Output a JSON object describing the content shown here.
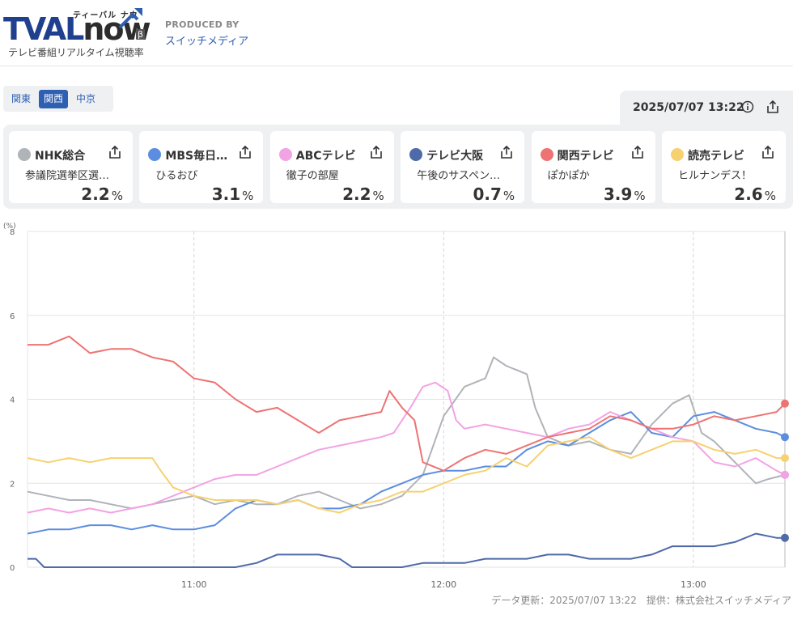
{
  "header": {
    "logo_tval": "TVAL",
    "logo_now": "now",
    "logo_beta": "β",
    "logo_kana": "ティーバル ナウ",
    "subtitle": "テレビ番組リアルタイム視聴率",
    "produced_by": "PRODUCED BY",
    "company": "スイッチメディア"
  },
  "regions": [
    {
      "label": "関東",
      "active": false
    },
    {
      "label": "関西",
      "active": true
    },
    {
      "label": "中京",
      "active": false
    }
  ],
  "timestamp": "2025/07/07 13:22",
  "channels": [
    {
      "name": "NHK総合",
      "program": "参議院選挙区選…",
      "rating": "2.2",
      "unit": "%",
      "color": "#b0b3b8"
    },
    {
      "name": "MBS毎日…",
      "program": "ひるおび",
      "rating": "3.1",
      "unit": "%",
      "color": "#5b8de0"
    },
    {
      "name": "ABCテレビ",
      "program": "徹子の部屋",
      "rating": "2.2",
      "unit": "%",
      "color": "#f2a3e3"
    },
    {
      "name": "テレビ大阪",
      "program": "午後のサスペン…",
      "rating": "0.7",
      "unit": "%",
      "color": "#4e6aa8"
    },
    {
      "name": "関西テレビ",
      "program": "ぽかぽか",
      "rating": "3.9",
      "unit": "%",
      "color": "#ee7373"
    },
    {
      "name": "読売テレビ",
      "program": "ヒルナンデス！",
      "rating": "2.6",
      "unit": "%",
      "color": "#f7d170"
    }
  ],
  "chart_data": {
    "type": "line",
    "ylabel": "(%)",
    "ylim": [
      0,
      8
    ],
    "yticks": [
      0,
      2,
      4,
      6,
      8
    ],
    "x_range": [
      "10:20",
      "13:22"
    ],
    "x_ticks": [
      "11:00",
      "12:00",
      "13:00"
    ],
    "grid": true,
    "series": [
      {
        "name": "NHK総合",
        "color": "#b0b3b8",
        "points": [
          [
            "10:20",
            1.8
          ],
          [
            "10:25",
            1.7
          ],
          [
            "10:30",
            1.6
          ],
          [
            "10:35",
            1.6
          ],
          [
            "10:40",
            1.5
          ],
          [
            "10:45",
            1.4
          ],
          [
            "10:50",
            1.5
          ],
          [
            "10:55",
            1.6
          ],
          [
            "11:00",
            1.7
          ],
          [
            "11:05",
            1.5
          ],
          [
            "11:10",
            1.6
          ],
          [
            "11:15",
            1.5
          ],
          [
            "11:20",
            1.5
          ],
          [
            "11:25",
            1.7
          ],
          [
            "11:30",
            1.8
          ],
          [
            "11:35",
            1.6
          ],
          [
            "11:40",
            1.4
          ],
          [
            "11:45",
            1.5
          ],
          [
            "11:50",
            1.7
          ],
          [
            "11:55",
            2.2
          ],
          [
            "12:00",
            3.6
          ],
          [
            "12:05",
            4.3
          ],
          [
            "12:10",
            4.5
          ],
          [
            "12:12",
            5.0
          ],
          [
            "12:15",
            4.8
          ],
          [
            "12:20",
            4.6
          ],
          [
            "12:22",
            3.8
          ],
          [
            "12:25",
            3.1
          ],
          [
            "12:30",
            2.9
          ],
          [
            "12:35",
            3.0
          ],
          [
            "12:40",
            2.8
          ],
          [
            "12:45",
            2.7
          ],
          [
            "12:50",
            3.4
          ],
          [
            "12:55",
            3.9
          ],
          [
            "12:59",
            4.1
          ],
          [
            "13:02",
            3.2
          ],
          [
            "13:05",
            3.0
          ],
          [
            "13:10",
            2.5
          ],
          [
            "13:15",
            2.0
          ],
          [
            "13:18",
            2.1
          ],
          [
            "13:22",
            2.2
          ]
        ]
      },
      {
        "name": "MBS毎日…",
        "color": "#5b8de0",
        "points": [
          [
            "10:20",
            0.8
          ],
          [
            "10:25",
            0.9
          ],
          [
            "10:30",
            0.9
          ],
          [
            "10:35",
            1.0
          ],
          [
            "10:40",
            1.0
          ],
          [
            "10:45",
            0.9
          ],
          [
            "10:50",
            1.0
          ],
          [
            "10:55",
            0.9
          ],
          [
            "11:00",
            0.9
          ],
          [
            "11:05",
            1.0
          ],
          [
            "11:10",
            1.4
          ],
          [
            "11:15",
            1.6
          ],
          [
            "11:20",
            1.5
          ],
          [
            "11:25",
            1.6
          ],
          [
            "11:30",
            1.4
          ],
          [
            "11:35",
            1.4
          ],
          [
            "11:40",
            1.5
          ],
          [
            "11:45",
            1.8
          ],
          [
            "11:50",
            2.0
          ],
          [
            "11:55",
            2.2
          ],
          [
            "12:00",
            2.3
          ],
          [
            "12:05",
            2.3
          ],
          [
            "12:10",
            2.4
          ],
          [
            "12:15",
            2.4
          ],
          [
            "12:20",
            2.8
          ],
          [
            "12:25",
            3.0
          ],
          [
            "12:30",
            2.9
          ],
          [
            "12:35",
            3.2
          ],
          [
            "12:40",
            3.5
          ],
          [
            "12:45",
            3.7
          ],
          [
            "12:50",
            3.2
          ],
          [
            "12:55",
            3.1
          ],
          [
            "13:00",
            3.6
          ],
          [
            "13:05",
            3.7
          ],
          [
            "13:10",
            3.5
          ],
          [
            "13:15",
            3.3
          ],
          [
            "13:20",
            3.2
          ],
          [
            "13:22",
            3.1
          ]
        ]
      },
      {
        "name": "ABCテレビ",
        "color": "#f2a3e3",
        "points": [
          [
            "10:20",
            1.3
          ],
          [
            "10:25",
            1.4
          ],
          [
            "10:30",
            1.3
          ],
          [
            "10:35",
            1.4
          ],
          [
            "10:40",
            1.3
          ],
          [
            "10:45",
            1.4
          ],
          [
            "10:50",
            1.5
          ],
          [
            "10:55",
            1.7
          ],
          [
            "11:00",
            1.9
          ],
          [
            "11:05",
            2.1
          ],
          [
            "11:10",
            2.2
          ],
          [
            "11:15",
            2.2
          ],
          [
            "11:20",
            2.4
          ],
          [
            "11:25",
            2.6
          ],
          [
            "11:30",
            2.8
          ],
          [
            "11:35",
            2.9
          ],
          [
            "11:40",
            3.0
          ],
          [
            "11:45",
            3.1
          ],
          [
            "11:48",
            3.2
          ],
          [
            "11:52",
            3.8
          ],
          [
            "11:55",
            4.3
          ],
          [
            "11:58",
            4.4
          ],
          [
            "12:01",
            4.2
          ],
          [
            "12:03",
            3.5
          ],
          [
            "12:05",
            3.3
          ],
          [
            "12:10",
            3.4
          ],
          [
            "12:15",
            3.3
          ],
          [
            "12:20",
            3.2
          ],
          [
            "12:25",
            3.1
          ],
          [
            "12:30",
            3.3
          ],
          [
            "12:35",
            3.4
          ],
          [
            "12:40",
            3.7
          ],
          [
            "12:45",
            3.5
          ],
          [
            "12:50",
            3.3
          ],
          [
            "12:55",
            3.1
          ],
          [
            "13:00",
            3.0
          ],
          [
            "13:05",
            2.5
          ],
          [
            "13:10",
            2.4
          ],
          [
            "13:15",
            2.6
          ],
          [
            "13:20",
            2.3
          ],
          [
            "13:22",
            2.2
          ]
        ]
      },
      {
        "name": "テレビ大阪",
        "color": "#4e6aa8",
        "points": [
          [
            "10:20",
            0.2
          ],
          [
            "10:22",
            0.2
          ],
          [
            "10:24",
            0.0
          ],
          [
            "10:35",
            0.0
          ],
          [
            "10:50",
            0.0
          ],
          [
            "11:05",
            0.0
          ],
          [
            "11:10",
            0.0
          ],
          [
            "11:15",
            0.1
          ],
          [
            "11:20",
            0.3
          ],
          [
            "11:25",
            0.3
          ],
          [
            "11:30",
            0.3
          ],
          [
            "11:35",
            0.2
          ],
          [
            "11:38",
            0.0
          ],
          [
            "11:50",
            0.0
          ],
          [
            "11:55",
            0.1
          ],
          [
            "12:00",
            0.1
          ],
          [
            "12:05",
            0.1
          ],
          [
            "12:10",
            0.2
          ],
          [
            "12:15",
            0.2
          ],
          [
            "12:20",
            0.2
          ],
          [
            "12:25",
            0.3
          ],
          [
            "12:30",
            0.3
          ],
          [
            "12:35",
            0.2
          ],
          [
            "12:40",
            0.2
          ],
          [
            "12:45",
            0.2
          ],
          [
            "12:50",
            0.3
          ],
          [
            "12:55",
            0.5
          ],
          [
            "13:00",
            0.5
          ],
          [
            "13:05",
            0.5
          ],
          [
            "13:10",
            0.6
          ],
          [
            "13:15",
            0.8
          ],
          [
            "13:20",
            0.7
          ],
          [
            "13:22",
            0.7
          ]
        ]
      },
      {
        "name": "関西テレビ",
        "color": "#ee7373",
        "points": [
          [
            "10:20",
            5.3
          ],
          [
            "10:25",
            5.3
          ],
          [
            "10:30",
            5.5
          ],
          [
            "10:35",
            5.1
          ],
          [
            "10:40",
            5.2
          ],
          [
            "10:45",
            5.2
          ],
          [
            "10:50",
            5.0
          ],
          [
            "10:55",
            4.9
          ],
          [
            "11:00",
            4.5
          ],
          [
            "11:05",
            4.4
          ],
          [
            "11:10",
            4.0
          ],
          [
            "11:15",
            3.7
          ],
          [
            "11:20",
            3.8
          ],
          [
            "11:25",
            3.5
          ],
          [
            "11:30",
            3.2
          ],
          [
            "11:35",
            3.5
          ],
          [
            "11:40",
            3.6
          ],
          [
            "11:45",
            3.7
          ],
          [
            "11:47",
            4.2
          ],
          [
            "11:50",
            3.8
          ],
          [
            "11:53",
            3.5
          ],
          [
            "11:55",
            2.5
          ],
          [
            "12:00",
            2.3
          ],
          [
            "12:05",
            2.6
          ],
          [
            "12:10",
            2.8
          ],
          [
            "12:15",
            2.7
          ],
          [
            "12:20",
            2.9
          ],
          [
            "12:25",
            3.1
          ],
          [
            "12:30",
            3.2
          ],
          [
            "12:35",
            3.3
          ],
          [
            "12:40",
            3.6
          ],
          [
            "12:45",
            3.5
          ],
          [
            "12:50",
            3.3
          ],
          [
            "12:55",
            3.3
          ],
          [
            "13:00",
            3.4
          ],
          [
            "13:05",
            3.6
          ],
          [
            "13:10",
            3.5
          ],
          [
            "13:15",
            3.6
          ],
          [
            "13:20",
            3.7
          ],
          [
            "13:22",
            3.9
          ]
        ]
      },
      {
        "name": "読売テレビ",
        "color": "#f7d170",
        "points": [
          [
            "10:20",
            2.6
          ],
          [
            "10:25",
            2.5
          ],
          [
            "10:30",
            2.6
          ],
          [
            "10:35",
            2.5
          ],
          [
            "10:40",
            2.6
          ],
          [
            "10:45",
            2.6
          ],
          [
            "10:50",
            2.6
          ],
          [
            "10:52",
            2.3
          ],
          [
            "10:55",
            1.9
          ],
          [
            "11:00",
            1.7
          ],
          [
            "11:05",
            1.6
          ],
          [
            "11:10",
            1.6
          ],
          [
            "11:15",
            1.6
          ],
          [
            "11:20",
            1.5
          ],
          [
            "11:25",
            1.6
          ],
          [
            "11:30",
            1.4
          ],
          [
            "11:35",
            1.3
          ],
          [
            "11:40",
            1.5
          ],
          [
            "11:45",
            1.6
          ],
          [
            "11:50",
            1.8
          ],
          [
            "11:55",
            1.8
          ],
          [
            "12:00",
            2.0
          ],
          [
            "12:05",
            2.2
          ],
          [
            "12:10",
            2.3
          ],
          [
            "12:15",
            2.6
          ],
          [
            "12:20",
            2.4
          ],
          [
            "12:25",
            2.9
          ],
          [
            "12:30",
            3.0
          ],
          [
            "12:35",
            3.1
          ],
          [
            "12:40",
            2.8
          ],
          [
            "12:45",
            2.6
          ],
          [
            "12:50",
            2.8
          ],
          [
            "12:55",
            3.0
          ],
          [
            "13:00",
            3.0
          ],
          [
            "13:05",
            2.8
          ],
          [
            "13:10",
            2.7
          ],
          [
            "13:15",
            2.8
          ],
          [
            "13:20",
            2.6
          ],
          [
            "13:22",
            2.6
          ]
        ]
      }
    ]
  },
  "footer": "データ更新：2025/07/07 13:22　提供：株式会社スイッチメディア"
}
